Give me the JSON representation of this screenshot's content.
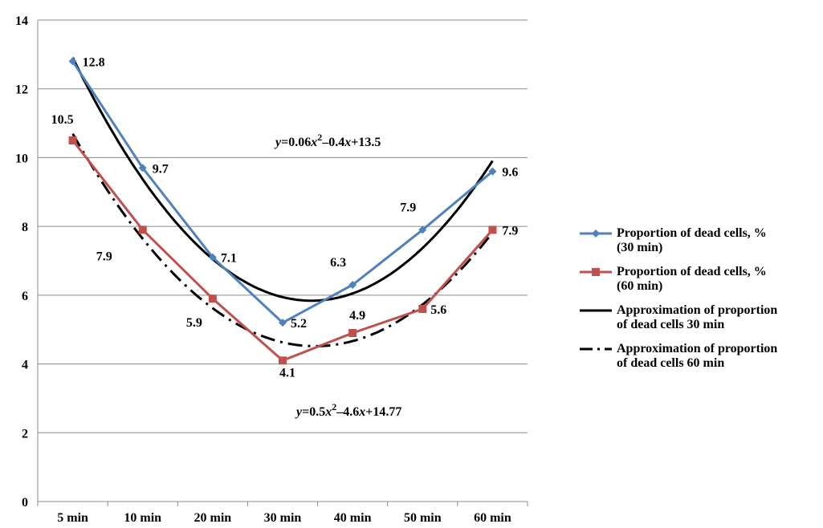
{
  "chart_data": {
    "type": "line",
    "categories": [
      "5 min",
      "10 min",
      "20 min",
      "30 min",
      "40 min",
      "50 min",
      "60 min"
    ],
    "ylim": [
      0,
      14
    ],
    "yticks": [
      0,
      2,
      4,
      6,
      8,
      10,
      12,
      14
    ],
    "grid": true,
    "legend_position": "right",
    "series": [
      {
        "name": "Proportion of dead cells, % (30 min)",
        "values": [
          12.8,
          9.7,
          7.1,
          5.2,
          6.3,
          7.9,
          9.6
        ],
        "labels": [
          "12.8",
          "9.7",
          "7.1",
          "5.2",
          "6.3",
          "7.9",
          "9.6"
        ],
        "color": "#4F81BD",
        "marker": "diamond"
      },
      {
        "name": "Proportion of dead cells, % (60 min)",
        "values": [
          10.5,
          7.9,
          5.9,
          4.1,
          4.9,
          5.6,
          7.9
        ],
        "labels": [
          "10.5",
          "7.9",
          "5.9",
          "4.1",
          "4.9",
          "5.6",
          "7.9"
        ],
        "color": "#C0504D",
        "marker": "square"
      },
      {
        "name": "Approximation of proportion of dead cells 30 min",
        "type": "poly2",
        "equation": "y=0.06x2–0.4x+13.5",
        "color": "#000000",
        "style": "solid"
      },
      {
        "name": "Approximation of proportion of dead cells 60 min",
        "type": "poly2",
        "equation": "y=0.5x2–4.6x+14.77",
        "color": "#000000",
        "style": "dash-dot"
      }
    ]
  },
  "legend": {
    "items": [
      {
        "line1": "Proportion of dead cells, %",
        "line2": "(30 min)"
      },
      {
        "line1": "Proportion of dead cells, %",
        "line2": "(60 min)"
      },
      {
        "line1": "Approximation of proportion",
        "line2": "of dead cells 30 min"
      },
      {
        "line1": "Approximation of proportion",
        "line2": "of dead cells 60 min"
      }
    ]
  },
  "equations": {
    "eq30": {
      "y": "y",
      "a": "=0.06",
      "x1": "x",
      "sup": "2",
      "b": "–0.4",
      "x2": "x",
      "c": "+13.5"
    },
    "eq60": {
      "y": "y",
      "a": "=0.5",
      "x1": "x",
      "sup": "2",
      "b": "–4.6",
      "x2": "x",
      "c": "+14.77"
    }
  }
}
